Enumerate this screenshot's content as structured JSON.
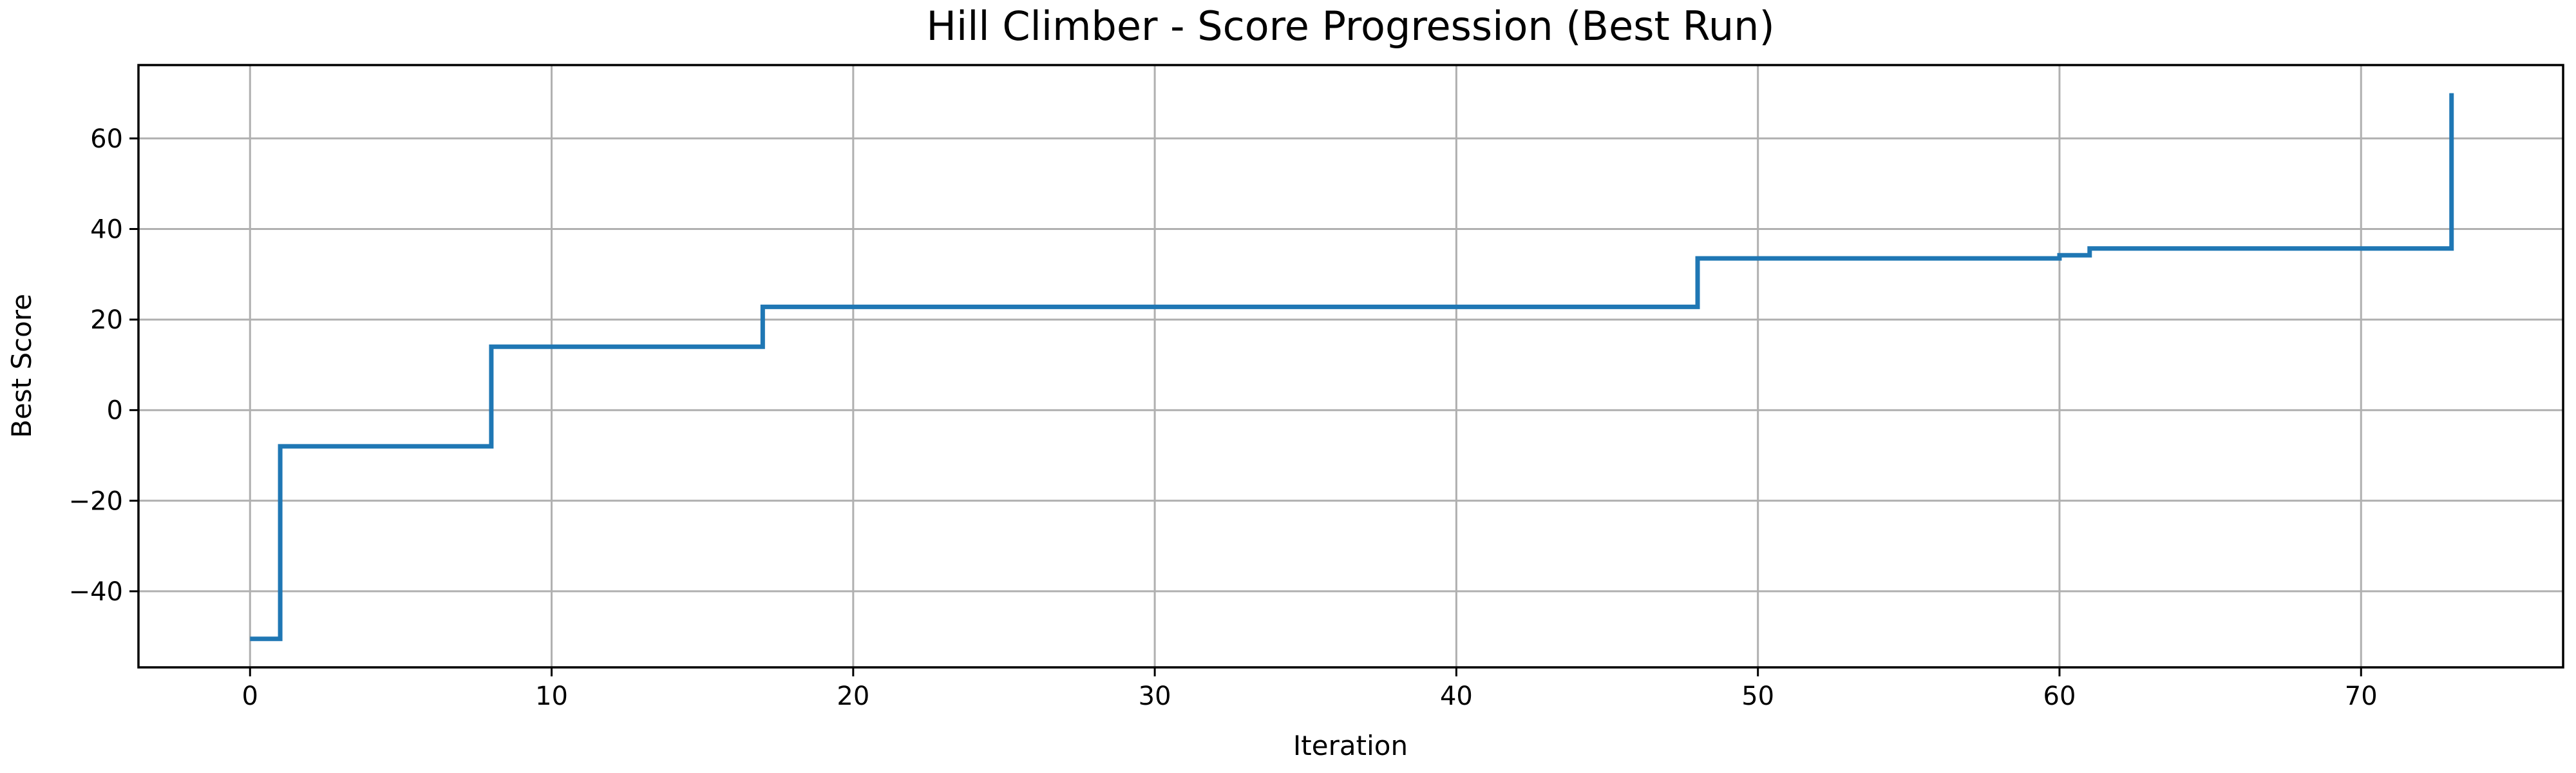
{
  "chart_data": {
    "type": "line",
    "title": "Hill Climber - Score Progression (Best Run)",
    "xlabel": "Iteration",
    "ylabel": "Best Score",
    "xlim": [
      -3.7,
      76.7
    ],
    "ylim": [
      -56.8,
      76.2
    ],
    "xticks": [
      0,
      10,
      20,
      30,
      40,
      50,
      60,
      70
    ],
    "yticks": [
      -40,
      -20,
      0,
      20,
      40,
      60
    ],
    "xtick_labels": [
      "0",
      "10",
      "20",
      "30",
      "40",
      "50",
      "60",
      "70"
    ],
    "ytick_labels": [
      "−40",
      "−20",
      "0",
      "20",
      "40",
      "60"
    ],
    "grid": true,
    "line_style": "steps-post",
    "series": [
      {
        "color": "#1f77b4",
        "x": [
          0,
          1,
          8,
          17,
          48,
          60,
          61,
          73,
          73
        ],
        "y": [
          -50.5,
          -8,
          14,
          22.8,
          33.5,
          34.2,
          35.7,
          35.7,
          70
        ]
      }
    ]
  }
}
